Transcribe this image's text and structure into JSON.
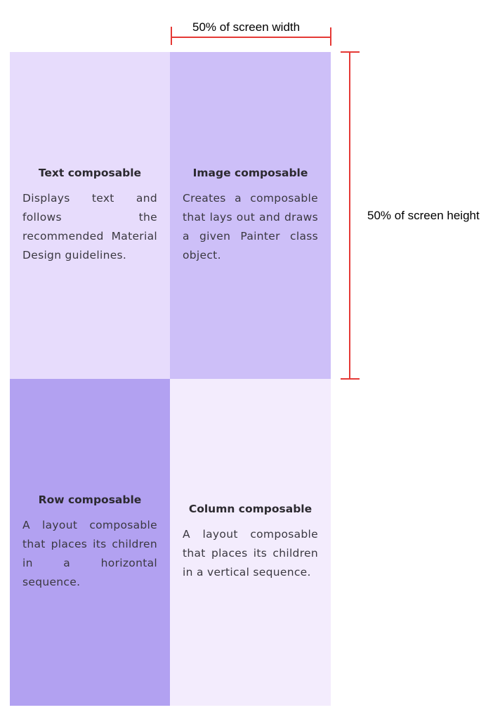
{
  "annotations": {
    "width_label": "50% of screen width",
    "height_label": "50% of screen height",
    "color": "#E53935"
  },
  "quadrants": [
    {
      "title": "Text composable",
      "body": "Displays text and follows the recommended Material Design guidelines.",
      "color": "#E7DCFC"
    },
    {
      "title": "Image composable",
      "body": "Creates a composable that lays out and draws a given Painter class object.",
      "color": "#CDBFF8"
    },
    {
      "title": "Row composable",
      "body": "A layout composable that places its children in a horizontal sequence.",
      "color": "#B2A1F1"
    },
    {
      "title": "Column composable",
      "body": "A layout composable that places its children in a vertical sequence.",
      "color": "#F3ECFD"
    }
  ]
}
